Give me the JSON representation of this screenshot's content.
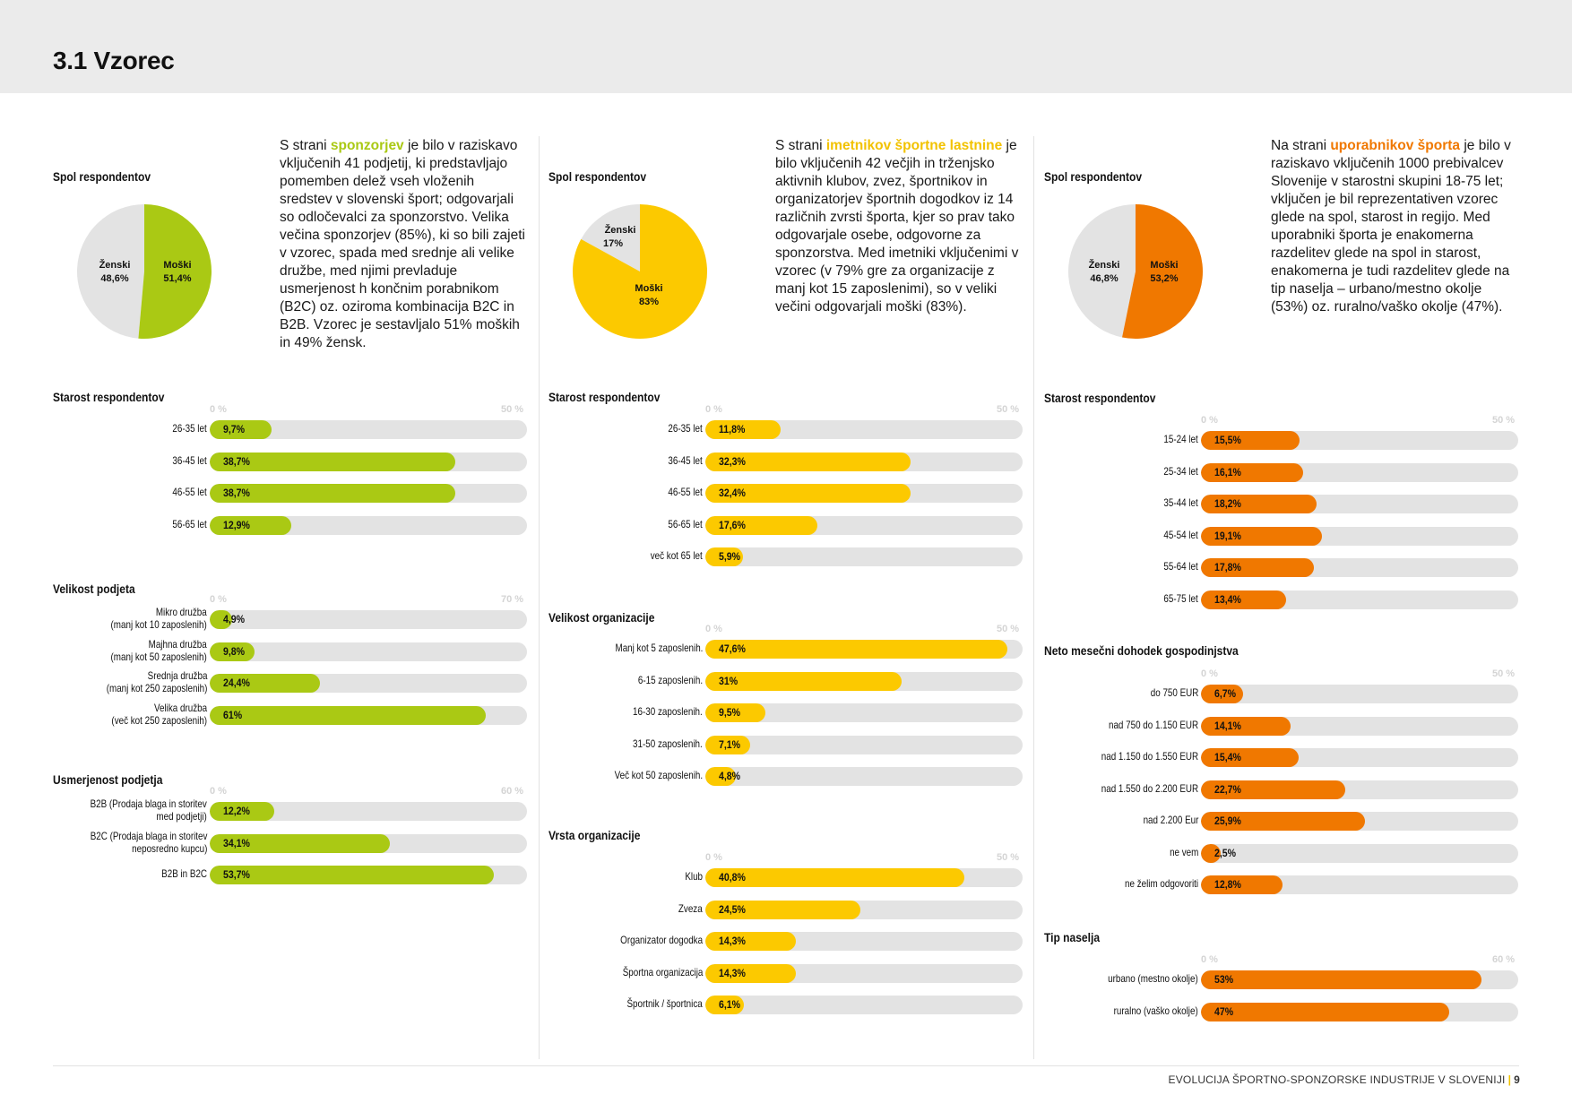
{
  "page": {
    "title": "3.1 Vzorec",
    "footer": {
      "text": "EVOLUCIJA ŠPORTNO-SPONZORSKE INDUSTRIJE V SLOVENIJI",
      "separator": "|",
      "page_number": "9"
    }
  },
  "colors": {
    "sponsors": "#aac914",
    "owners": "#fcc900",
    "users": "#f07800",
    "track": "#e3e3e3",
    "pie_rest": "#e3e3e3"
  },
  "columns": [
    {
      "key": "sponsors",
      "gender": {
        "title": "Spol respondentov",
        "slices": [
          {
            "label": "Ženski",
            "value_text": "48,6%",
            "value": 48.6
          },
          {
            "label": "Moški",
            "value_text": "51,4%",
            "value": 51.4
          }
        ]
      },
      "intro": {
        "pre": "S strani ",
        "highlight": "sponzorjev",
        "post": " je bilo v raziskavo vključenih 41 podjetij, ki predstavljajo pomemben delež vseh vloženih sredstev v slovenski šport; odgovarjali so odločevalci za sponzorstvo. Velika večina sponzorjev (85%), ki so bili zajeti v vzorec, spada med srednje ali velike družbe, med njimi prevladuje usmerjenost h končnim porabnikom (B2C) oz. oziroma kombinacija B2C in B2B. Vzorec je sestavljalo 51% moških in 49% žensk."
      },
      "sections": [
        {
          "title": "Starost respondentov",
          "scale_min": "0 %",
          "scale_max": "50 %",
          "max": 50,
          "items": [
            {
              "label": "26-35 let",
              "value": 9.7,
              "value_text": "9,7%"
            },
            {
              "label": "36-45 let",
              "value": 38.7,
              "value_text": "38,7%"
            },
            {
              "label": "46-55 let",
              "value": 38.7,
              "value_text": "38,7%"
            },
            {
              "label": "56-65 let",
              "value": 12.9,
              "value_text": "12,9%"
            }
          ]
        },
        {
          "title": "Velikost podjeta",
          "scale_min": "0 %",
          "scale_max": "70 %",
          "max": 70,
          "items": [
            {
              "label": "Mikro družba",
              "label2": "(manj kot 10 zaposlenih)",
              "value": 4.9,
              "value_text": "4,9%"
            },
            {
              "label": "Majhna družba",
              "label2": "(manj kot 50 zaposlenih)",
              "value": 9.8,
              "value_text": "9,8%"
            },
            {
              "label": "Srednja družba",
              "label2": "(manj kot 250 zaposlenih)",
              "value": 24.4,
              "value_text": "24,4%"
            },
            {
              "label": "Velika družba",
              "label2": "(več kot 250 zaposlenih)",
              "value": 61,
              "value_text": "61%"
            }
          ]
        },
        {
          "title": "Usmerjenost podjetja",
          "scale_min": "0 %",
          "scale_max": "60 %",
          "max": 60,
          "items": [
            {
              "label": "B2B (Prodaja blaga in storitev",
              "label2": "med podjetji)",
              "value": 12.2,
              "value_text": "12,2%"
            },
            {
              "label": "B2C (Prodaja blaga in storitev",
              "label2": "neposredno kupcu)",
              "value": 34.1,
              "value_text": "34,1%"
            },
            {
              "label": "B2B in B2C",
              "value": 53.7,
              "value_text": "53,7%"
            }
          ]
        }
      ]
    },
    {
      "key": "owners",
      "gender": {
        "title": "Spol respondentov",
        "slices": [
          {
            "label": "Ženski",
            "value_text": "17%",
            "value": 17
          },
          {
            "label": "Moški",
            "value_text": "83%",
            "value": 83
          }
        ]
      },
      "intro": {
        "pre": "S strani ",
        "highlight": "imetnikov športne lastnine",
        "post": " je bilo vključenih 42 večjih in trženjsko aktivnih klubov, zvez, športnikov in organizatorjev športnih dogodkov iz 14 različnih zvrsti športa, kjer so prav tako odgovarjale osebe, odgovorne za sponzorstva. Med imetniki vključenimi v vzorec (v 79% gre za organizacije z manj kot 15 zaposlenimi), so v veliki večini odgovarjali moški (83%)."
      },
      "sections": [
        {
          "title": "Starost respondentov",
          "scale_min": "0 %",
          "scale_max": "50 %",
          "max": 50,
          "items": [
            {
              "label": "26-35 let",
              "value": 11.8,
              "value_text": "11,8%"
            },
            {
              "label": "36-45 let",
              "value": 32.3,
              "value_text": "32,3%"
            },
            {
              "label": "46-55 let",
              "value": 32.4,
              "value_text": "32,4%"
            },
            {
              "label": "56-65 let",
              "value": 17.6,
              "value_text": "17,6%"
            },
            {
              "label": "več kot 65 let",
              "value": 5.9,
              "value_text": "5,9%"
            }
          ]
        },
        {
          "title": "Velikost organizacije",
          "scale_min": "0 %",
          "scale_max": "50 %",
          "max": 50,
          "items": [
            {
              "label": "Manj kot 5 zaposlenih.",
              "value": 47.6,
              "value_text": "47,6%"
            },
            {
              "label": "6-15 zaposlenih.",
              "value": 31,
              "value_text": "31%"
            },
            {
              "label": "16-30 zaposlenih.",
              "value": 9.5,
              "value_text": "9,5%"
            },
            {
              "label": "31-50 zaposlenih.",
              "value": 7.1,
              "value_text": "7,1%"
            },
            {
              "label": "Več kot 50 zaposlenih.",
              "value": 4.8,
              "value_text": "4,8%"
            }
          ]
        },
        {
          "title": "Vrsta organizacije",
          "scale_min": "0 %",
          "scale_max": "50 %",
          "max": 50,
          "items": [
            {
              "label": "Klub",
              "value": 40.8,
              "value_text": "40,8%"
            },
            {
              "label": "Zveza",
              "value": 24.5,
              "value_text": "24,5%"
            },
            {
              "label": "Organizator dogodka",
              "value": 14.3,
              "value_text": "14,3%"
            },
            {
              "label": "Športna organizacija",
              "value": 14.3,
              "value_text": "14,3%"
            },
            {
              "label": "Športnik / športnica",
              "value": 6.1,
              "value_text": "6,1%"
            }
          ]
        }
      ]
    },
    {
      "key": "users",
      "gender": {
        "title": "Spol respondentov",
        "slices": [
          {
            "label": "Ženski",
            "value_text": "46,8%",
            "value": 46.8
          },
          {
            "label": "Moški",
            "value_text": "53,2%",
            "value": 53.2
          }
        ]
      },
      "intro": {
        "pre": "Na strani ",
        "highlight": "uporabnikov športa",
        "post": " je bilo v raziskavo vključenih 1000 prebivalcev Slovenije v starostni skupini 18-75 let; vključen je bil reprezentativen vzorec glede na spol, starost in regijo. Med uporabniki športa je enakomerna razdelitev glede na spol in starost, enakomerna je tudi razdelitev glede na tip naselja – urbano/mestno okolje (53%) oz. ruralno/vaško okolje (47%)."
      },
      "sections": [
        {
          "title": "Starost respondentov",
          "scale_min": "0 %",
          "scale_max": "50 %",
          "max": 50,
          "items": [
            {
              "label": "15-24 let",
              "value": 15.5,
              "value_text": "15,5%"
            },
            {
              "label": "25-34 let",
              "value": 16.1,
              "value_text": "16,1%"
            },
            {
              "label": "35-44 let",
              "value": 18.2,
              "value_text": "18,2%"
            },
            {
              "label": "45-54 let",
              "value": 19.1,
              "value_text": "19,1%"
            },
            {
              "label": "55-64 let",
              "value": 17.8,
              "value_text": "17,8%"
            },
            {
              "label": "65-75 let",
              "value": 13.4,
              "value_text": "13,4%"
            }
          ]
        },
        {
          "title": "Neto mesečni dohodek gospodinjstva",
          "scale_min": "0 %",
          "scale_max": "50 %",
          "max": 50,
          "items": [
            {
              "label": "do 750 EUR",
              "value": 6.7,
              "value_text": "6,7%"
            },
            {
              "label": "nad 750 do 1.150 EUR",
              "value": 14.1,
              "value_text": "14,1%"
            },
            {
              "label": "nad 1.150 do 1.550 EUR",
              "value": 15.4,
              "value_text": "15,4%"
            },
            {
              "label": "nad 1.550 do 2.200 EUR",
              "value": 22.7,
              "value_text": "22,7%"
            },
            {
              "label": "nad 2.200 Eur",
              "value": 25.9,
              "value_text": "25,9%"
            },
            {
              "label": "ne vem",
              "value": 2.5,
              "value_text": "2,5%"
            },
            {
              "label": "ne želim odgovoriti",
              "value": 12.8,
              "value_text": "12,8%"
            }
          ]
        },
        {
          "title": "Tip naselja",
          "scale_min": "0 %",
          "scale_max": "60 %",
          "max": 60,
          "items": [
            {
              "label": "urbano (mestno okolje)",
              "value": 53,
              "value_text": "53%"
            },
            {
              "label": "ruralno (vaško okolje)",
              "value": 47,
              "value_text": "47%"
            }
          ]
        }
      ]
    }
  ]
}
